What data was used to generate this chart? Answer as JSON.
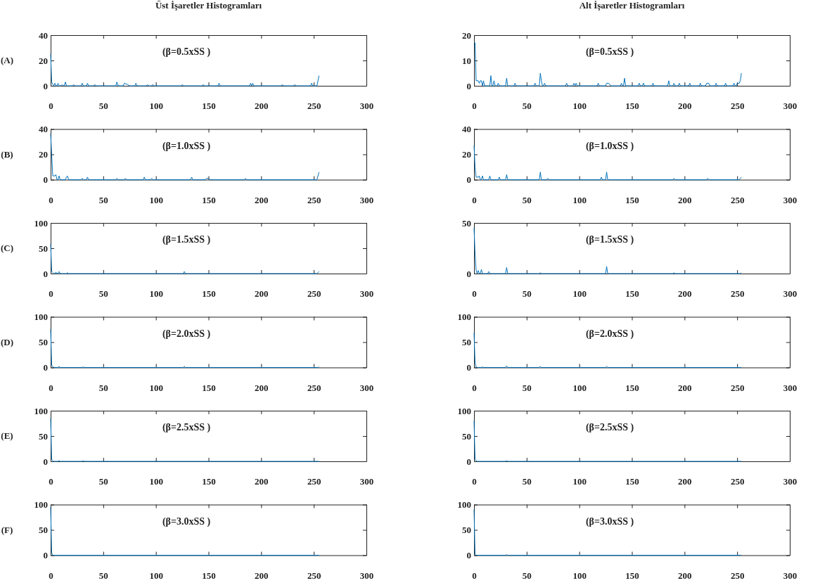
{
  "chart_data": [
    {
      "type": "line",
      "title": "Üst İşaretler Histogramları",
      "ylabel": "(A)",
      "annotations": [
        "(β=0.5xSS )"
      ],
      "color": "#0072bd",
      "xlim": [
        0,
        300
      ],
      "xticks": [
        0,
        50,
        100,
        150,
        200,
        250,
        300
      ],
      "ylim": [
        0,
        40
      ],
      "yticks": [
        0,
        20,
        40
      ],
      "x": [
        0,
        1,
        2,
        3,
        4,
        5,
        6,
        7,
        8,
        10,
        11,
        12,
        13,
        14,
        15,
        21,
        22,
        23,
        29,
        30,
        31,
        34,
        35,
        36,
        41,
        42,
        43,
        62,
        63,
        64,
        69,
        70,
        73,
        75,
        80,
        81,
        82,
        91,
        92,
        93,
        96,
        97,
        98,
        124,
        125,
        126,
        144,
        145,
        146,
        159,
        160,
        161,
        189,
        190,
        191,
        192,
        193,
        219,
        220,
        221,
        231,
        232,
        233,
        247,
        248,
        249,
        253,
        255
      ],
      "values": [
        25,
        3,
        1,
        0,
        2,
        0,
        0,
        2,
        0,
        0,
        1,
        0,
        0,
        3,
        0,
        0,
        1,
        0,
        0,
        2,
        0,
        0,
        2,
        0,
        0,
        1,
        0,
        0,
        3,
        0,
        0,
        2,
        1,
        0,
        0,
        2,
        0,
        0,
        1,
        0,
        0,
        1,
        0,
        0,
        1,
        0,
        0,
        1,
        0,
        0,
        2,
        0,
        0,
        2,
        0,
        2,
        0,
        0,
        1,
        0,
        0,
        1,
        0,
        0,
        2,
        0,
        0,
        8
      ]
    },
    {
      "type": "line",
      "title": "Alt İşaretler Histogramları",
      "annotations": [
        "(β=0.5xSS )"
      ],
      "color": "#0072bd",
      "xlim": [
        0,
        300
      ],
      "xticks": [
        0,
        50,
        100,
        150,
        200,
        250,
        300
      ],
      "ylim": [
        0,
        20
      ],
      "yticks": [
        0,
        10,
        20
      ],
      "x": [
        0,
        1,
        2,
        4,
        5,
        6,
        7,
        8,
        9,
        10,
        15,
        16,
        17,
        18,
        19,
        20,
        22,
        23,
        24,
        30,
        31,
        32,
        38,
        39,
        40,
        57,
        58,
        59,
        62,
        63,
        64,
        65,
        66,
        67,
        68,
        87,
        88,
        89,
        94,
        95,
        96,
        97,
        98,
        117,
        118,
        119,
        125,
        126,
        128,
        130,
        139,
        140,
        141,
        142,
        143,
        144,
        156,
        157,
        158,
        160,
        161,
        162,
        169,
        170,
        171,
        184,
        185,
        186,
        189,
        190,
        191,
        194,
        195,
        196,
        204,
        205,
        206,
        214,
        215,
        216,
        220,
        221,
        223,
        224,
        229,
        230,
        231,
        238,
        239,
        240,
        246,
        247,
        248,
        249,
        250,
        252,
        253,
        254
      ],
      "values": [
        17,
        17,
        2,
        2,
        1,
        2,
        2,
        0,
        2,
        0,
        0,
        4,
        0,
        0,
        2,
        0,
        0,
        1,
        0,
        0,
        3,
        0,
        0,
        1,
        0,
        0,
        1,
        0,
        0,
        5,
        2,
        0,
        0,
        1,
        0,
        0,
        1,
        0,
        0,
        1,
        0,
        1,
        0,
        0,
        1,
        0,
        0,
        1,
        1,
        0,
        0,
        1,
        0,
        0,
        3,
        0,
        0,
        1,
        0,
        0,
        1,
        0,
        0,
        1,
        0,
        0,
        2,
        0,
        0,
        1,
        0,
        0,
        1,
        0,
        0,
        1,
        0,
        0,
        1,
        0,
        0,
        1,
        1,
        0,
        0,
        1,
        0,
        0,
        1,
        0,
        0,
        1,
        0,
        0,
        1,
        1,
        2,
        5
      ]
    },
    {
      "type": "line",
      "ylabel": "(B)",
      "annotations": [
        "(β=1.0xSS )"
      ],
      "color": "#0072bd",
      "xlim": [
        0,
        300
      ],
      "xticks": [
        0,
        50,
        100,
        150,
        200,
        250,
        300
      ],
      "ylim": [
        0,
        40
      ],
      "yticks": [
        0,
        20,
        40
      ],
      "x": [
        0,
        1,
        2,
        4,
        5,
        6,
        7,
        8,
        9,
        14,
        15,
        16,
        17,
        29,
        30,
        31,
        34,
        35,
        36,
        62,
        63,
        64,
        70,
        71,
        72,
        88,
        89,
        90,
        95,
        96,
        97,
        133,
        134,
        135,
        147,
        148,
        150,
        151,
        184,
        185,
        186,
        253,
        255
      ],
      "values": [
        36,
        20,
        3,
        3,
        4,
        0,
        0,
        3,
        0,
        0,
        2,
        3,
        0,
        0,
        1,
        0,
        0,
        2,
        0,
        0,
        1,
        0,
        0,
        1,
        0,
        0,
        2,
        0,
        0,
        1,
        0,
        0,
        2,
        0,
        0,
        1,
        1,
        0,
        0,
        1,
        0,
        0,
        6
      ]
    },
    {
      "type": "line",
      "annotations": [
        "(β=1.0xSS )"
      ],
      "color": "#0072bd",
      "xlim": [
        0,
        300
      ],
      "xticks": [
        0,
        50,
        100,
        150,
        200,
        250,
        300
      ],
      "ylim": [
        0,
        40
      ],
      "yticks": [
        0,
        20,
        40
      ],
      "x": [
        0,
        1,
        2,
        4,
        5,
        6,
        7,
        8,
        9,
        14,
        15,
        16,
        23,
        24,
        25,
        30,
        31,
        32,
        62,
        63,
        64,
        69,
        70,
        71,
        120,
        121,
        122,
        125,
        126,
        127,
        189,
        190,
        191,
        221,
        222,
        223,
        252,
        253,
        254
      ],
      "values": [
        27,
        10,
        2,
        2,
        3,
        0,
        0,
        3,
        0,
        0,
        3,
        0,
        0,
        2,
        0,
        0,
        4,
        0,
        0,
        6,
        0,
        0,
        1,
        0,
        0,
        2,
        0,
        0,
        6,
        0,
        0,
        1,
        0,
        0,
        1,
        0,
        0,
        1,
        2
      ]
    },
    {
      "type": "line",
      "ylabel": "(C)",
      "annotations": [
        "(β=1.5xSS )"
      ],
      "color": "#0072bd",
      "xlim": [
        0,
        300
      ],
      "xticks": [
        0,
        50,
        100,
        150,
        200,
        250,
        300
      ],
      "ylim": [
        0,
        100
      ],
      "yticks": [
        0,
        50,
        100
      ],
      "x": [
        0,
        1,
        2,
        3,
        4,
        5,
        6,
        7,
        8,
        9,
        15,
        16,
        17,
        126,
        127,
        128,
        253,
        255
      ],
      "values": [
        58,
        5,
        2,
        0,
        0,
        3,
        0,
        0,
        4,
        0,
        0,
        2,
        0,
        0,
        4,
        0,
        0,
        4
      ]
    },
    {
      "type": "line",
      "annotations": [
        "(β=1.5xSS )"
      ],
      "color": "#0072bd",
      "xlim": [
        0,
        300
      ],
      "xticks": [
        0,
        50,
        100,
        150,
        200,
        250,
        300
      ],
      "ylim": [
        0,
        50
      ],
      "yticks": [
        0,
        50
      ],
      "x": [
        0,
        1,
        2,
        3,
        4,
        5,
        6,
        7,
        8,
        13,
        14,
        15,
        30,
        31,
        32,
        62,
        63,
        64,
        125,
        126,
        127,
        189,
        190,
        191,
        253,
        254
      ],
      "values": [
        45,
        20,
        3,
        0,
        3,
        0,
        0,
        4,
        0,
        0,
        2,
        0,
        0,
        6,
        0,
        0,
        1,
        0,
        0,
        7,
        0,
        0,
        1,
        0,
        0,
        1
      ]
    },
    {
      "type": "line",
      "ylabel": "(D)",
      "annotations": [
        "(β=2.0xSS )"
      ],
      "color": "#0072bd",
      "xlim": [
        0,
        300
      ],
      "xticks": [
        0,
        50,
        100,
        150,
        200,
        250,
        300
      ],
      "ylim": [
        0,
        100
      ],
      "yticks": [
        0,
        50,
        100
      ],
      "x": [
        0,
        1,
        2,
        3,
        7,
        8,
        9,
        30,
        31,
        32,
        126,
        127,
        128,
        254,
        255
      ],
      "values": [
        75,
        5,
        2,
        0,
        0,
        2,
        0,
        0,
        1,
        0,
        0,
        2,
        0,
        0,
        1
      ]
    },
    {
      "type": "line",
      "annotations": [
        "(β=2.0xSS )"
      ],
      "color": "#0072bd",
      "xlim": [
        0,
        300
      ],
      "xticks": [
        0,
        50,
        100,
        150,
        200,
        250,
        300
      ],
      "ylim": [
        0,
        100
      ],
      "yticks": [
        0,
        50,
        100
      ],
      "x": [
        0,
        1,
        2,
        3,
        7,
        8,
        9,
        30,
        31,
        32,
        62,
        63,
        64,
        125,
        126,
        127,
        254
      ],
      "values": [
        68,
        10,
        1,
        0,
        0,
        1,
        0,
        0,
        3,
        0,
        0,
        2,
        0,
        0,
        2,
        0,
        0
      ]
    },
    {
      "type": "line",
      "ylabel": "(E)",
      "annotations": [
        "(β=2.5xSS )"
      ],
      "color": "#0072bd",
      "xlim": [
        0,
        300
      ],
      "xticks": [
        0,
        50,
        100,
        150,
        200,
        250,
        300
      ],
      "ylim": [
        0,
        100
      ],
      "yticks": [
        0,
        50,
        100
      ],
      "x": [
        0,
        1,
        2,
        3,
        7,
        8,
        9,
        30,
        31,
        32,
        255
      ],
      "values": [
        85,
        4,
        1,
        0,
        0,
        1,
        0,
        0,
        1,
        0,
        0
      ]
    },
    {
      "type": "line",
      "annotations": [
        "(β=2.5xSS )"
      ],
      "color": "#0072bd",
      "xlim": [
        0,
        300
      ],
      "xticks": [
        0,
        50,
        100,
        150,
        200,
        250,
        300
      ],
      "ylim": [
        0,
        100
      ],
      "yticks": [
        0,
        50,
        100
      ],
      "x": [
        0,
        1,
        2,
        3,
        30,
        31,
        32,
        254
      ],
      "values": [
        80,
        5,
        1,
        0,
        0,
        1,
        0,
        0
      ]
    },
    {
      "type": "line",
      "ylabel": "(F)",
      "annotations": [
        "(β=3.0xSS )"
      ],
      "color": "#0072bd",
      "xlim": [
        0,
        300
      ],
      "xticks": [
        0,
        50,
        100,
        150,
        200,
        250,
        300
      ],
      "ylim": [
        0,
        100
      ],
      "yticks": [
        0,
        50,
        100
      ],
      "x": [
        0,
        1,
        2,
        255
      ],
      "values": [
        95,
        5,
        0,
        0
      ]
    },
    {
      "type": "line",
      "annotations": [
        "(β=3.0xSS )"
      ],
      "color": "#0072bd",
      "xlim": [
        0,
        300
      ],
      "xticks": [
        0,
        50,
        100,
        150,
        200,
        250,
        300
      ],
      "ylim": [
        0,
        100
      ],
      "yticks": [
        0,
        50,
        100
      ],
      "x": [
        0,
        1,
        2,
        30,
        31,
        32,
        254
      ],
      "values": [
        90,
        3,
        0,
        0,
        1,
        0,
        0
      ]
    }
  ]
}
